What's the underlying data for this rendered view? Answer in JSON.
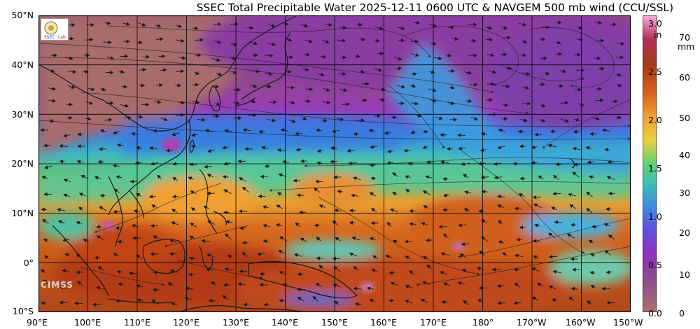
{
  "title": "SSEC Total Precipitable Water  2025-12-11 0600 UTC & NAVGEM 500 mb wind (CCU/SSL)",
  "map": {
    "lat_labels": [
      "50°N",
      "40°N",
      "30°N",
      "20°N",
      "10°N",
      "0°",
      "10°S"
    ],
    "lon_labels": [
      "90°E",
      "100°E",
      "110°E",
      "120°E",
      "130°E",
      "140°E",
      "150°E",
      "160°E",
      "170°E",
      "180°",
      "170°W",
      "160°W",
      "150°W"
    ],
    "watermark": "CIMSS"
  },
  "colorbar": {
    "in_unit": "in",
    "mm_unit": "mm",
    "in_ticks": [
      "3.0",
      "2.5",
      "2.0",
      "1.5",
      "1.0",
      "0.5",
      "0.0"
    ],
    "mm_ticks": [
      "70",
      "60",
      "50",
      "40",
      "30",
      "20",
      "10",
      "0"
    ],
    "colors": [
      "#f4b0e0",
      "#b52f5a",
      "#a33a1a",
      "#d8601a",
      "#f0a030",
      "#e8d040",
      "#60d070",
      "#40c0b0",
      "#3a90e0",
      "#6050e0",
      "#9030c0",
      "#8a4890",
      "#b07070"
    ]
  }
}
